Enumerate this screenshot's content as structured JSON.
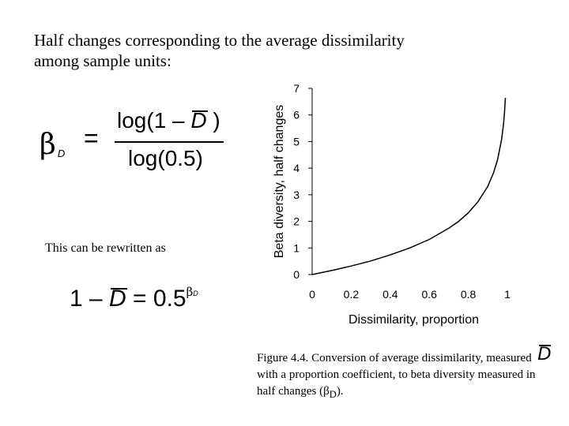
{
  "heading": {
    "line1": "Half changes corresponding to the average dissimilarity",
    "line2": "among sample units:"
  },
  "formula1": {
    "lhs": "β",
    "lhs_sub": "D",
    "equals": "=",
    "numerator_pre": "log(1 – ",
    "numerator_var": "D",
    "numerator_post": " )",
    "denominator": "log(0.5)"
  },
  "rewrite_text": "This can be rewritten as",
  "formula2": {
    "pre": "1 – ",
    "var": "D",
    "mid": " = 0.5",
    "exp": "β",
    "exp_sub": "D"
  },
  "caption": {
    "text": "Figure 4.4.  Conversion of average dissimilarity, measured with a proportion coefficient, to beta diversity measured in half changes (",
    "beta": "β",
    "sub": "D",
    "end": ").",
    "overbar_var": "D"
  },
  "chart_data": {
    "type": "line",
    "xlabel": "Dissimilarity, proportion",
    "ylabel": "Beta diversity, half changes",
    "xlim": [
      0,
      1
    ],
    "ylim": [
      0,
      7
    ],
    "xticks": [
      "0",
      "0.2",
      "0.4",
      "0.6",
      "0.8",
      "1"
    ],
    "yticks": [
      "0",
      "1",
      "2",
      "3",
      "4",
      "5",
      "6",
      "7"
    ],
    "grid": false,
    "series": [
      {
        "x": [
          0,
          0.1,
          0.2,
          0.3,
          0.4,
          0.5,
          0.6,
          0.7,
          0.75,
          0.8,
          0.85,
          0.9,
          0.93,
          0.95,
          0.97,
          0.98,
          0.985,
          0.99
        ],
        "y": [
          0,
          0.15,
          0.32,
          0.51,
          0.74,
          1.0,
          1.32,
          1.74,
          2.0,
          2.32,
          2.74,
          3.32,
          3.84,
          4.32,
          5.06,
          5.64,
          6.06,
          6.64
        ],
        "color": "#000000"
      }
    ]
  }
}
